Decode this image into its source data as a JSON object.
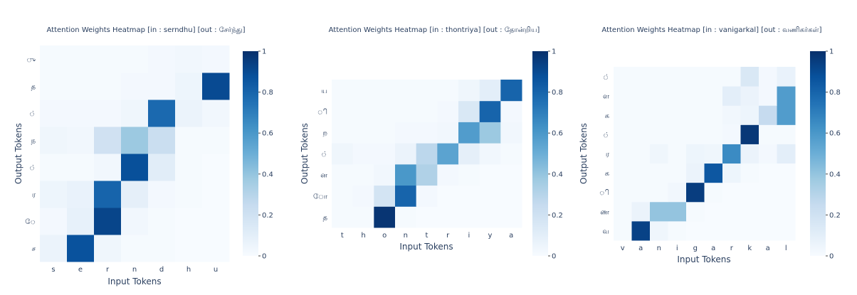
{
  "colorscale": [
    "#f7fbff",
    "#deebf7",
    "#c6dbef",
    "#9ecae1",
    "#6baed6",
    "#4292c6",
    "#2171b5",
    "#08519c",
    "#08306b"
  ],
  "chart_data": [
    {
      "type": "heatmap",
      "title": "Attention Weights Heatmap [in : serndhu] [out : சேர்ந்து]",
      "xlabel": "Input Tokens",
      "ylabel": "Output Tokens",
      "x": [
        "s",
        "e",
        "r",
        "n",
        "d",
        "h",
        "u"
      ],
      "y": [
        "ச",
        "ே",
        "ர",
        "்",
        "ந",
        "்",
        "த",
        "ு"
      ],
      "z": [
        [
          0.06,
          0.87,
          0.04,
          0.01,
          0.01,
          0.0,
          0.0
        ],
        [
          0.02,
          0.08,
          0.92,
          0.03,
          0.01,
          0.0,
          0.0
        ],
        [
          0.05,
          0.07,
          0.8,
          0.09,
          0.02,
          0.01,
          0.0
        ],
        [
          0.01,
          0.01,
          0.03,
          0.88,
          0.11,
          0.01,
          0.0
        ],
        [
          0.04,
          0.03,
          0.2,
          0.38,
          0.23,
          0.01,
          0.01
        ],
        [
          0.02,
          0.02,
          0.02,
          0.04,
          0.78,
          0.06,
          0.03
        ],
        [
          0.01,
          0.01,
          0.01,
          0.02,
          0.02,
          0.05,
          0.9
        ],
        [
          0.01,
          0.01,
          0.01,
          0.01,
          0.02,
          0.03,
          0.02
        ]
      ],
      "zmin": 0,
      "zmax": 1,
      "colorbar_ticks": [
        "0",
        "0.2",
        "0.4",
        "0.6",
        "0.8",
        "1"
      ]
    },
    {
      "type": "heatmap",
      "title": "Attention Weights Heatmap [in : thontriya] [out : தோன்றிய]",
      "xlabel": "Input Tokens",
      "ylabel": "Output Tokens",
      "x": [
        "t",
        "h",
        "o",
        "n",
        "t",
        "r",
        "i",
        "y",
        "a"
      ],
      "y": [
        "த",
        "ோ",
        "ன",
        "்",
        "ற",
        "ி",
        "ய"
      ],
      "z": [
        [
          0.01,
          0.01,
          0.98,
          0.01,
          0.0,
          0.0,
          0.0,
          0.0,
          0.0
        ],
        [
          0.01,
          0.02,
          0.18,
          0.8,
          0.02,
          0.0,
          0.0,
          0.0,
          0.0
        ],
        [
          0.01,
          0.01,
          0.03,
          0.6,
          0.32,
          0.02,
          0.01,
          0.0,
          0.0
        ],
        [
          0.04,
          0.02,
          0.02,
          0.06,
          0.28,
          0.55,
          0.09,
          0.03,
          0.01
        ],
        [
          0.01,
          0.01,
          0.01,
          0.02,
          0.02,
          0.03,
          0.58,
          0.38,
          0.03
        ],
        [
          0.01,
          0.01,
          0.01,
          0.01,
          0.01,
          0.02,
          0.15,
          0.8,
          0.02
        ],
        [
          0.01,
          0.01,
          0.01,
          0.01,
          0.01,
          0.01,
          0.04,
          0.1,
          0.8
        ]
      ],
      "zmin": 0,
      "zmax": 1,
      "colorbar_ticks": [
        "0",
        "0.2",
        "0.4",
        "0.6",
        "0.8",
        "1"
      ]
    },
    {
      "type": "heatmap",
      "title": "Attention Weights Heatmap [in : vanigarkal] [out : வணிகர்கள்]",
      "xlabel": "Input Tokens",
      "ylabel": "Output Tokens",
      "x": [
        "v",
        "a",
        "n",
        "i",
        "g",
        "a",
        "r",
        "k",
        "a",
        "l"
      ],
      "y": [
        "வ",
        "ண",
        "ி",
        "க",
        "ர",
        "்",
        "க",
        "ள",
        "்"
      ],
      "z": [
        [
          0.01,
          0.93,
          0.04,
          0.01,
          0.0,
          0.0,
          0.0,
          0.0,
          0.0,
          0.0
        ],
        [
          0.01,
          0.06,
          0.4,
          0.4,
          0.01,
          0.0,
          0.0,
          0.0,
          0.0,
          0.0
        ],
        [
          0.01,
          0.01,
          0.01,
          0.03,
          0.95,
          0.01,
          0.0,
          0.0,
          0.0,
          0.0
        ],
        [
          0.01,
          0.01,
          0.01,
          0.01,
          0.06,
          0.85,
          0.05,
          0.01,
          0.0,
          0.0
        ],
        [
          0.01,
          0.01,
          0.04,
          0.01,
          0.05,
          0.04,
          0.65,
          0.06,
          0.02,
          0.1
        ],
        [
          0.01,
          0.01,
          0.01,
          0.01,
          0.01,
          0.01,
          0.02,
          0.97,
          0.01,
          0.01
        ],
        [
          0.01,
          0.01,
          0.01,
          0.01,
          0.01,
          0.01,
          0.03,
          0.05,
          0.25,
          0.58
        ],
        [
          0.01,
          0.01,
          0.01,
          0.01,
          0.01,
          0.01,
          0.1,
          0.06,
          0.02,
          0.58
        ],
        [
          0.01,
          0.01,
          0.01,
          0.01,
          0.01,
          0.01,
          0.01,
          0.15,
          0.02,
          0.07
        ]
      ],
      "zmin": 0,
      "zmax": 1,
      "colorbar_ticks": [
        "0",
        "0.2",
        "0.4",
        "0.6",
        "0.8",
        "1"
      ]
    }
  ]
}
